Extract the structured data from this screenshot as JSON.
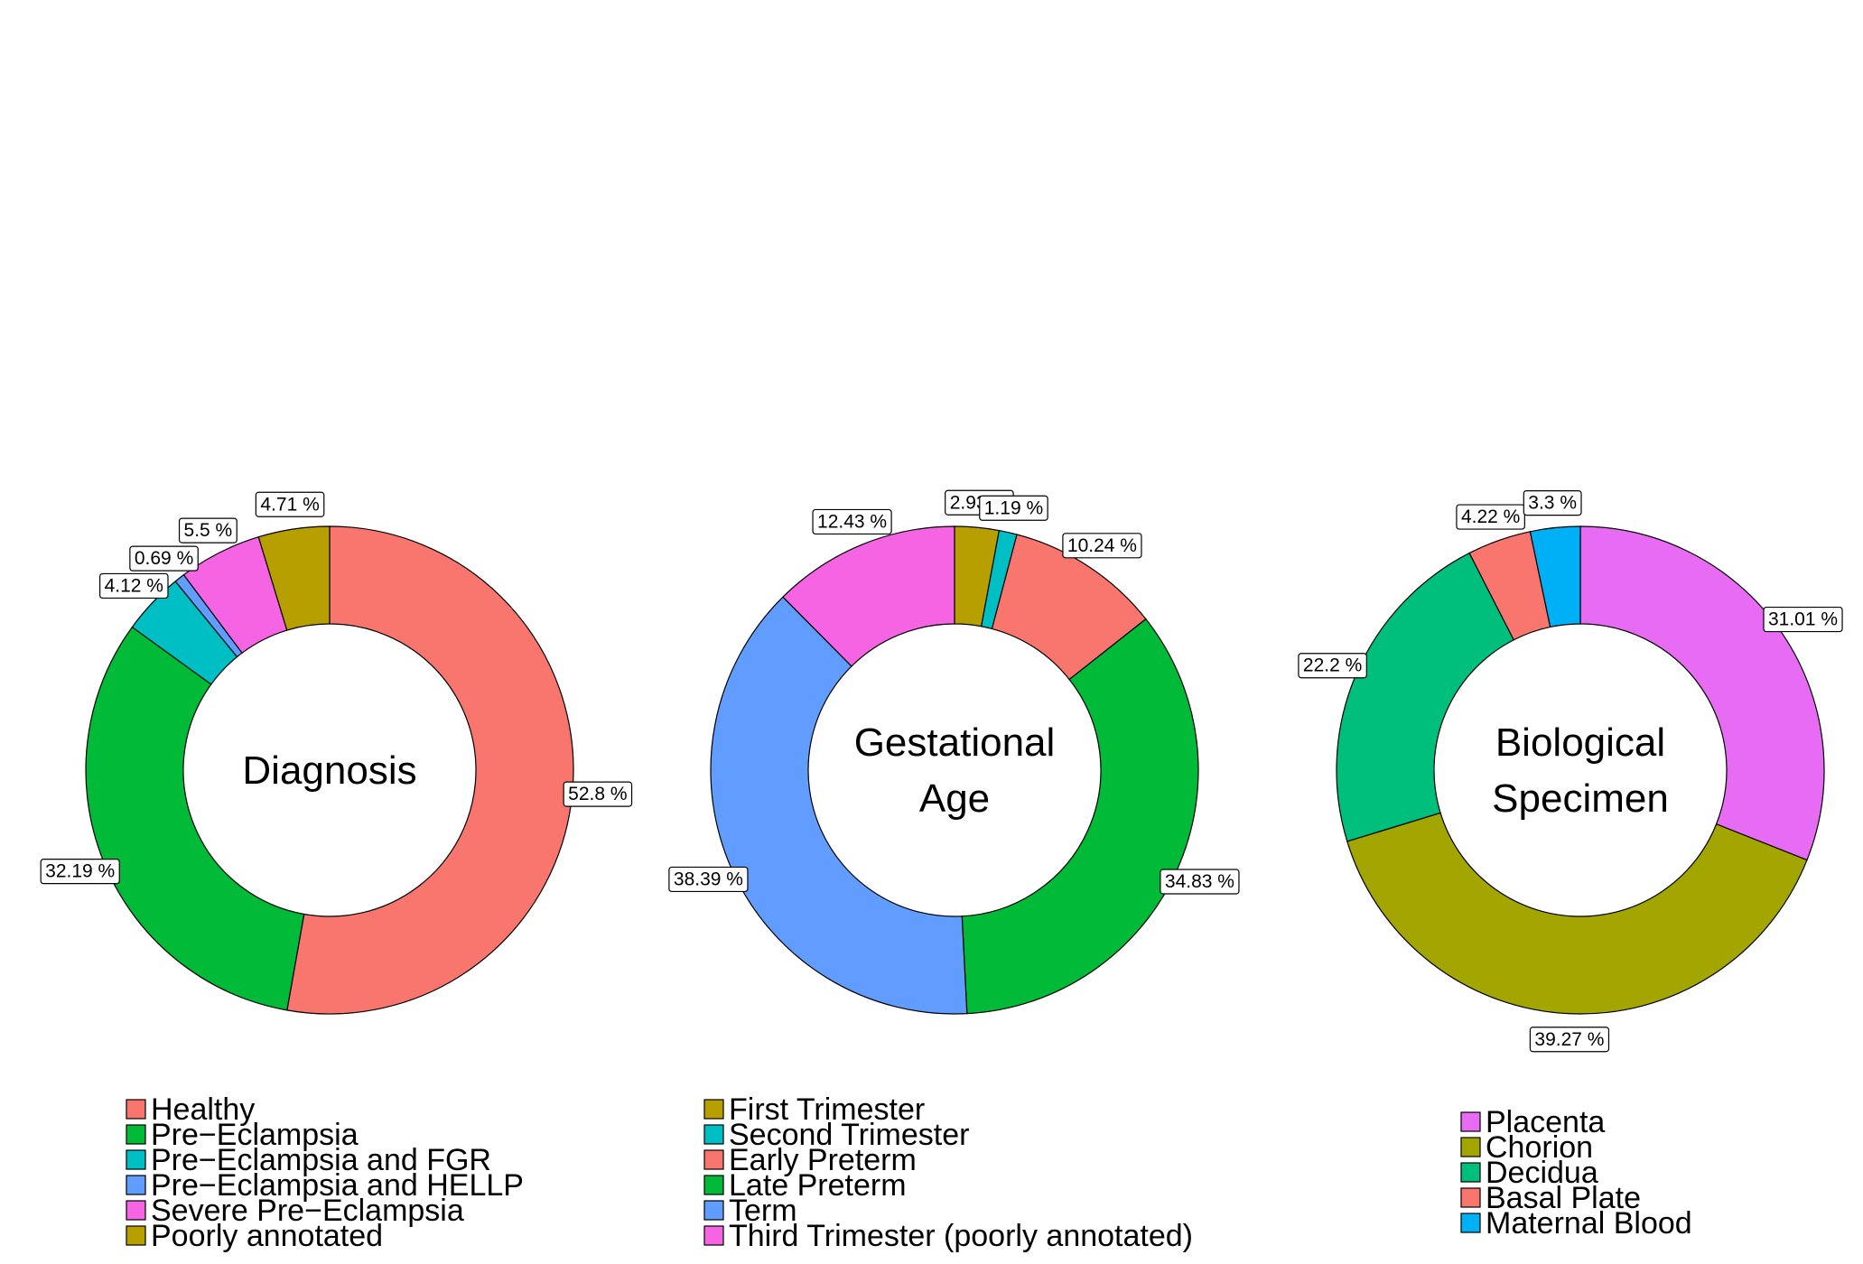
{
  "chart_data": [
    {
      "type": "pie",
      "style": "donut",
      "title": "Diagnosis",
      "center_lines": [
        "Diagnosis"
      ],
      "categories": [
        "Healthy",
        "Pre−Eclampsia",
        "Pre−Eclampsia and FGR",
        "Pre−Eclampsia and HELLP",
        "Severe Pre−Eclampsia",
        "Poorly annotated"
      ],
      "values": [
        52.8,
        32.19,
        4.12,
        0.69,
        5.5,
        4.71
      ],
      "value_labels": [
        "52.8 %",
        "32.19 %",
        "4.12 %",
        "0.69 %",
        "5.5 %",
        "4.71 %"
      ],
      "colors": [
        "#F8766D",
        "#00BA38",
        "#00BFC4",
        "#619CFF",
        "#F564E3",
        "#B79F00"
      ],
      "legend_position": "bottom"
    },
    {
      "type": "pie",
      "style": "donut",
      "title": "Gestational Age",
      "center_lines": [
        "Gestational",
        "Age"
      ],
      "categories": [
        "First Trimester",
        "Second Trimester",
        "Early Preterm",
        "Late Preterm",
        "Term",
        "Third Trimester (poorly annotated)"
      ],
      "values": [
        2.93,
        1.19,
        10.24,
        34.83,
        38.39,
        12.43
      ],
      "value_labels": [
        "2.93 %",
        "1.19 %",
        "10.24 %",
        "34.83 %",
        "38.39 %",
        "12.43 %"
      ],
      "colors": [
        "#B79F00",
        "#00BFC4",
        "#F8766D",
        "#00BA38",
        "#619CFF",
        "#F564E3"
      ],
      "legend_position": "bottom"
    },
    {
      "type": "pie",
      "style": "donut",
      "title": "Biological Specimen",
      "center_lines": [
        "Biological",
        "Specimen"
      ],
      "categories": [
        "Placenta",
        "Chorion",
        "Decidua",
        "Basal Plate",
        "Maternal Blood"
      ],
      "values": [
        31.01,
        39.27,
        22.2,
        4.22,
        3.3
      ],
      "value_labels": [
        "31.01 %",
        "39.27 %",
        "22.2 %",
        "4.22 %",
        "3.3 %"
      ],
      "colors": [
        "#E76BF3",
        "#A3A500",
        "#00BF7D",
        "#F8766D",
        "#00B0F6"
      ],
      "legend_position": "bottom"
    }
  ]
}
